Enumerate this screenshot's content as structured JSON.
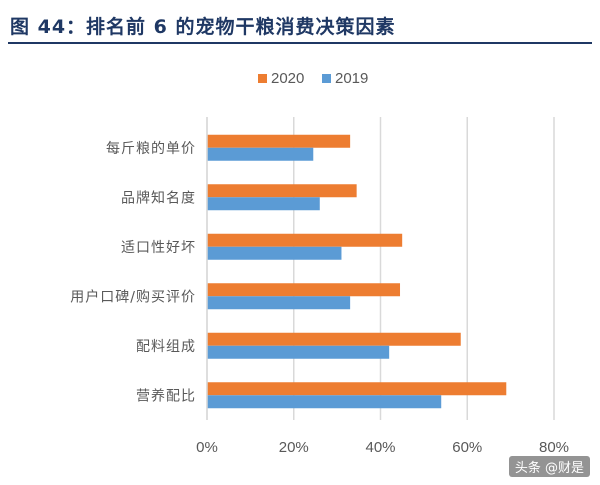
{
  "title": "图 44：排名前 6 的宠物干粮消费决策因素",
  "watermark": "头条 @财是",
  "colors": {
    "title": "#1f3864",
    "series_2020": "#ed7d31",
    "series_2019": "#5b9bd5",
    "grid": "#d9d9d9",
    "text": "#595959"
  },
  "chart_data": {
    "type": "bar",
    "orientation": "horizontal",
    "categories": [
      "每斤粮的单价",
      "品牌知名度",
      "适口性好坏",
      "用户口碑/购买评价",
      "配料组成",
      "营养配比"
    ],
    "series": [
      {
        "name": "2020",
        "values": [
          33,
          34.5,
          45,
          44.5,
          58.5,
          69
        ]
      },
      {
        "name": "2019",
        "values": [
          24.5,
          26,
          31,
          33,
          42,
          54
        ]
      }
    ],
    "xlim": [
      0,
      80
    ],
    "xticks": [
      "0%",
      "20%",
      "40%",
      "60%",
      "80%"
    ],
    "xtick_values": [
      0,
      20,
      40,
      60,
      80
    ],
    "grid": true,
    "legend_position": "top"
  }
}
